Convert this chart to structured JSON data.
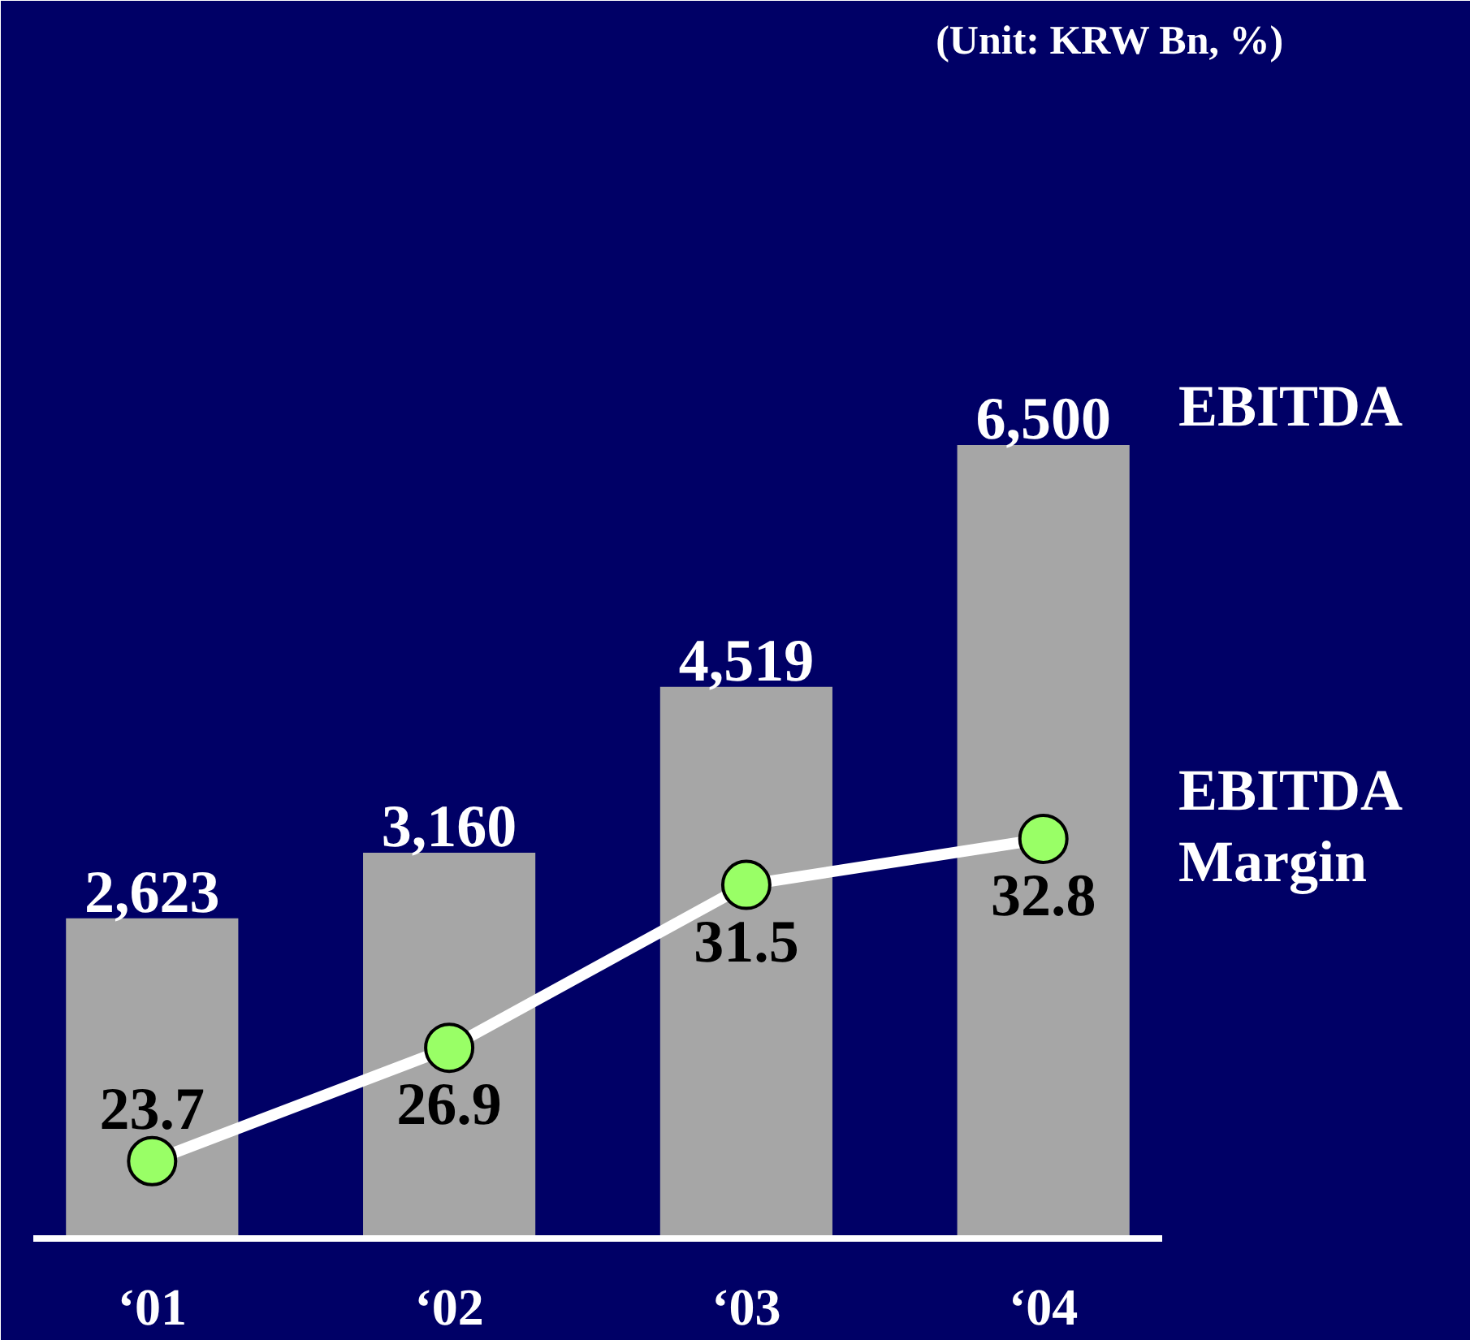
{
  "chart_data": {
    "type": "bar",
    "annotations": [
      "(Unit: KRW Bn, %)"
    ],
    "categories": [
      "‘01",
      "‘02",
      "‘03",
      "‘04"
    ],
    "series": [
      {
        "name": "EBITDA",
        "color": "#a6a6a6",
        "values": [
          2623,
          3160,
          4519,
          6500
        ],
        "value_labels": [
          "2,623",
          "3,160",
          "4,519",
          "6,500"
        ]
      },
      {
        "name": "EBITDA Margin",
        "type": "line",
        "axis": "y2",
        "color": "#ffffff",
        "colors": [
          "#99ff66",
          "#99ff66",
          "#99ff66",
          "#99ff66"
        ],
        "values": [
          23.7,
          26.9,
          31.5,
          32.8
        ]
      }
    ],
    "data_labels": true,
    "marker": "circle"
  }
}
